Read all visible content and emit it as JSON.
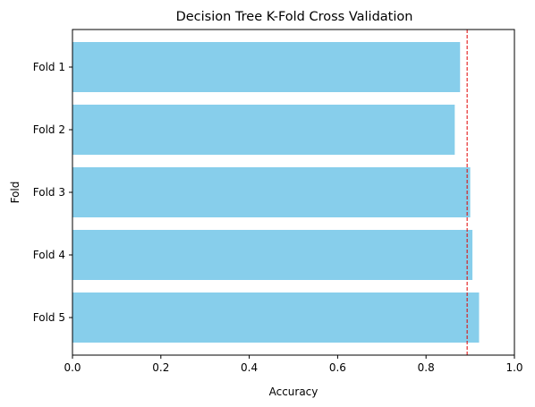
{
  "chart_data": {
    "type": "bar",
    "orientation": "horizontal",
    "title": "Decision Tree K-Fold Cross Validation",
    "xlabel": "Accuracy",
    "ylabel": "Fold",
    "xlim": [
      0,
      1
    ],
    "xticks": [
      "0.0",
      "0.2",
      "0.4",
      "0.6",
      "0.8",
      "1.0"
    ],
    "xtick_values": [
      0,
      0.2,
      0.4,
      0.6,
      0.8,
      1.0
    ],
    "categories": [
      "Fold 1",
      "Fold 2",
      "Fold 3",
      "Fold 4",
      "Fold 5"
    ],
    "values": [
      0.877,
      0.865,
      0.9,
      0.905,
      0.92
    ],
    "reference_line": {
      "value": 0.893,
      "style": "dashed",
      "color": "#e00000"
    },
    "bar_color": "#87ceeb",
    "grid": false,
    "legend": "none"
  }
}
